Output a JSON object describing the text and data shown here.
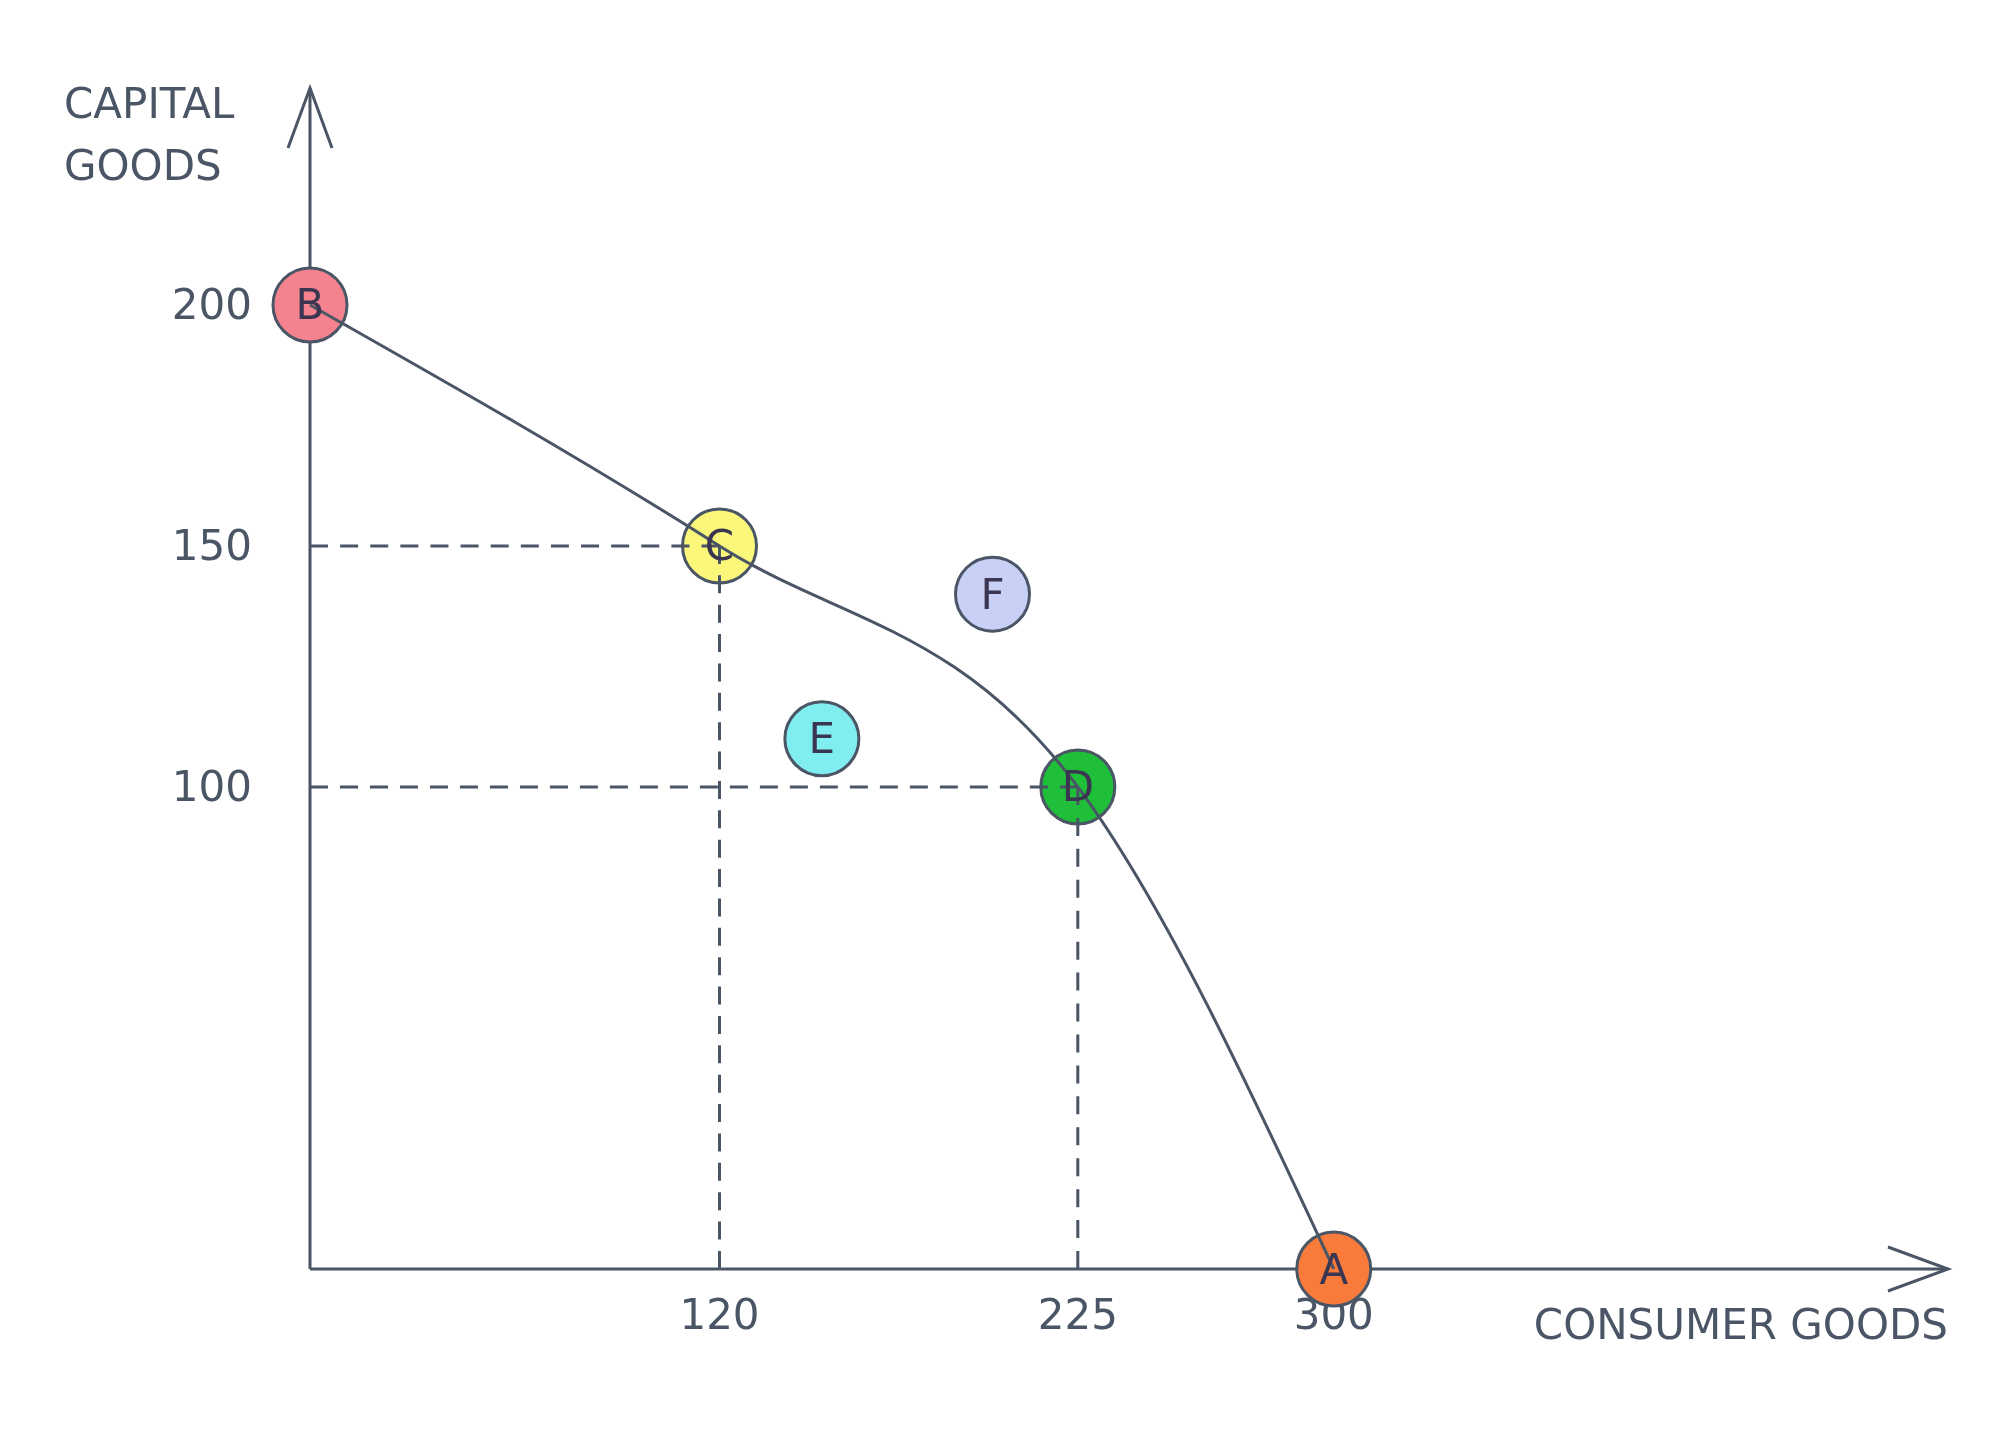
{
  "chart_data": {
    "type": "line",
    "xlabel": "CONSUMER GOODS",
    "ylabel": "CAPITAL GOODS",
    "xlim": [
      0,
      480
    ],
    "ylim": [
      0,
      245
    ],
    "xticks": [
      120,
      225,
      300
    ],
    "yticks": [
      100,
      150,
      200
    ],
    "series": [
      {
        "color": "#4a5565",
        "x": [
          0,
          120
        ],
        "values": [
          150,
          150
        ],
        "line_style": "dashed",
        "marker": "none"
      },
      {
        "color": "#4a5565",
        "x": [
          120,
          120
        ],
        "values": [
          150,
          0
        ],
        "line_style": "dashed",
        "marker": "none"
      },
      {
        "color": "#4a5565",
        "x": [
          0,
          225
        ],
        "values": [
          100,
          100
        ],
        "line_style": "dashed",
        "marker": "none"
      },
      {
        "color": "#4a5565",
        "x": [
          225,
          225
        ],
        "values": [
          100,
          0
        ],
        "line_style": "dashed",
        "marker": "none"
      },
      {
        "color": "#4a5565",
        "x": [
          0,
          120,
          225,
          300
        ],
        "values": [
          200,
          150,
          100,
          0
        ],
        "line_style": "solid",
        "marker": "none"
      },
      {
        "type": "scatter",
        "marker": "circle",
        "x": [
          300,
          0,
          120,
          225,
          150,
          200
        ],
        "values": [
          0,
          200,
          150,
          100,
          110,
          140
        ],
        "colors": [
          "#f97b3c",
          "#f4828f",
          "#fbf77a",
          "#1fbf3a",
          "#80eef0",
          "#c9d0f5"
        ]
      }
    ],
    "annotations": [
      {
        "text": "A",
        "x": 300,
        "y": 0
      },
      {
        "text": "B",
        "x": 0,
        "y": 200
      },
      {
        "text": "C",
        "x": 120,
        "y": 150
      },
      {
        "text": "D",
        "x": 225,
        "y": 100
      },
      {
        "text": "E",
        "x": 150,
        "y": 110
      },
      {
        "text": "F",
        "x": 200,
        "y": 140
      }
    ]
  }
}
